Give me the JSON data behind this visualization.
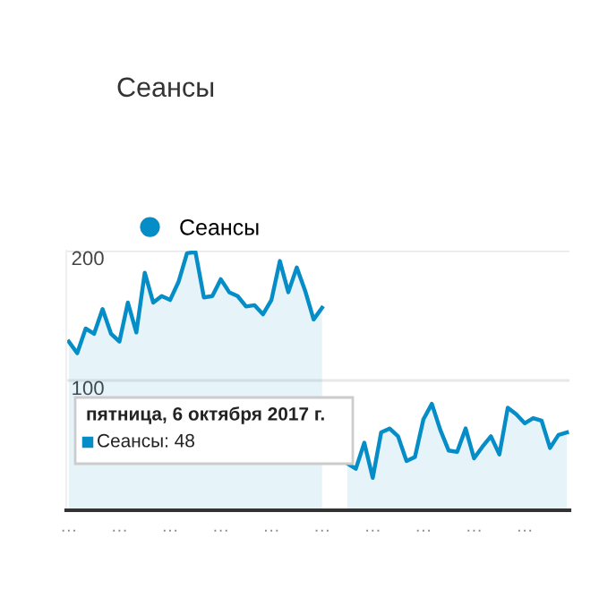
{
  "chart_data": {
    "type": "area",
    "title": "Сеансы",
    "categories": [
      "…",
      null,
      null,
      null,
      null,
      null,
      "…",
      null,
      null,
      null,
      null,
      null,
      "…",
      null,
      null,
      null,
      null,
      null,
      "…",
      null,
      null,
      null,
      null,
      null,
      "…",
      null,
      null,
      null,
      null,
      null,
      "…",
      null,
      null,
      null,
      null,
      null,
      "…",
      null,
      null,
      null,
      null,
      null,
      "…",
      null,
      null,
      null,
      null,
      null,
      "…",
      null,
      null,
      null,
      null,
      null,
      "…",
      null,
      null,
      null,
      null,
      null
    ],
    "series": [
      {
        "name": "Сеансы",
        "color": "#058dc7",
        "values": [
          130,
          121,
          140,
          136,
          155,
          136,
          130,
          160,
          137,
          183,
          160,
          165,
          162,
          176,
          198,
          199,
          164,
          165,
          178,
          168,
          165,
          157,
          158,
          151,
          162,
          192,
          168,
          187,
          169,
          147,
          156,
          null,
          null,
          36,
          32,
          52,
          25,
          60,
          63,
          57,
          38,
          41,
          70,
          82,
          62,
          46,
          45,
          63,
          40,
          49,
          57,
          43,
          79,
          74,
          67,
          71,
          69,
          48,
          58,
          60
        ]
      }
    ],
    "ylim": [
      0,
      200
    ],
    "yticks": [
      100,
      200
    ],
    "grid": "y",
    "legend": "top left",
    "annotations": [
      "пятница, 6 октября 2017 г.",
      "Сеансы: 48"
    ]
  }
}
